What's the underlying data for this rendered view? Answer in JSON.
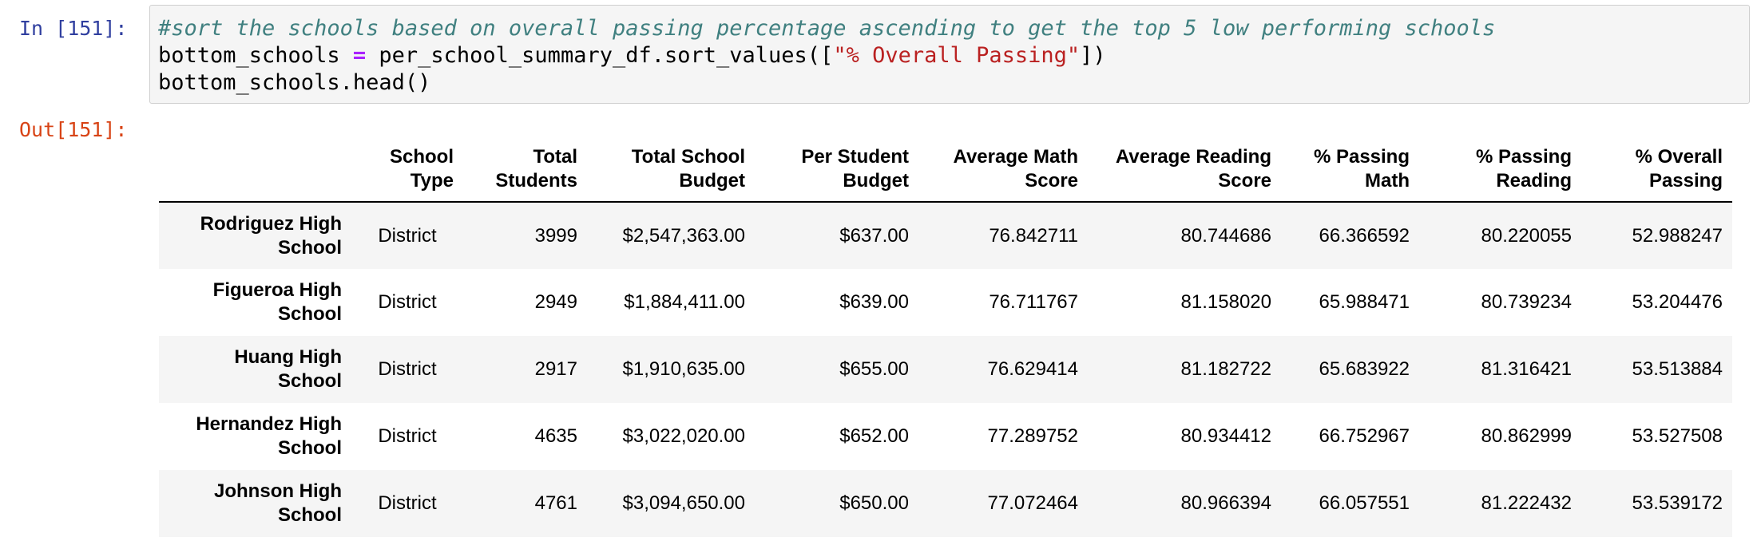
{
  "cell": {
    "in_prompt": "In [151]:",
    "out_prompt": "Out[151]:",
    "code": {
      "comment": "#sort the schools based on overall passing percentage ascending to get the top 5 low performing schools",
      "line2_var": "bottom_schools ",
      "line2_op": "=",
      "line2_call": " per_school_summary_df.sort_values([",
      "line2_str": "\"% Overall Passing\"",
      "line2_end": "])",
      "line3": "bottom_schools.head()"
    }
  },
  "table": {
    "columns": [
      "School Type",
      "Total Students",
      "Total School Budget",
      "Per Student Budget",
      "Average Math Score",
      "Average Reading Score",
      "% Passing Math",
      "% Passing Reading",
      "% Overall Passing"
    ],
    "rows": [
      {
        "index": "Rodriguez High School",
        "cells": [
          "District",
          "3999",
          "$2,547,363.00",
          "$637.00",
          "76.842711",
          "80.744686",
          "66.366592",
          "80.220055",
          "52.988247"
        ]
      },
      {
        "index": "Figueroa High School",
        "cells": [
          "District",
          "2949",
          "$1,884,411.00",
          "$639.00",
          "76.711767",
          "81.158020",
          "65.988471",
          "80.739234",
          "53.204476"
        ]
      },
      {
        "index": "Huang High School",
        "cells": [
          "District",
          "2917",
          "$1,910,635.00",
          "$655.00",
          "76.629414",
          "81.182722",
          "65.683922",
          "81.316421",
          "53.513884"
        ]
      },
      {
        "index": "Hernandez High School",
        "cells": [
          "District",
          "4635",
          "$3,022,020.00",
          "$652.00",
          "77.289752",
          "80.934412",
          "66.752967",
          "80.862999",
          "53.527508"
        ]
      },
      {
        "index": "Johnson High School",
        "cells": [
          "District",
          "4761",
          "$3,094,650.00",
          "$650.00",
          "77.072464",
          "80.966394",
          "66.057551",
          "81.222432",
          "53.539172"
        ]
      }
    ]
  }
}
